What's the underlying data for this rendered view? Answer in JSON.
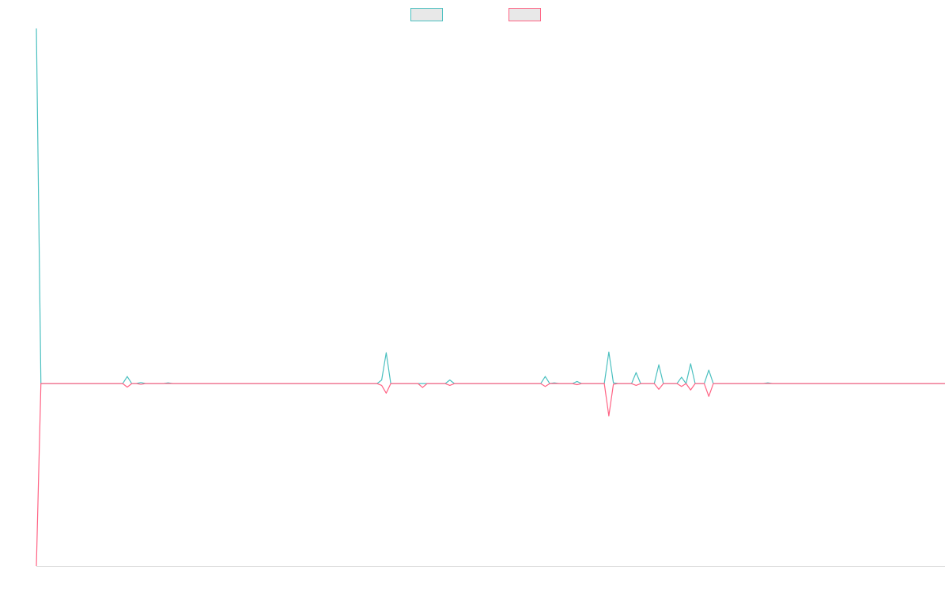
{
  "chart_data": {
    "type": "line",
    "categories": [
      null,
      null,
      null,
      null,
      null,
      null,
      null,
      null,
      null,
      null,
      null,
      null,
      null,
      null,
      null,
      null,
      null,
      null,
      null,
      null,
      null,
      null,
      null,
      null,
      null,
      null,
      null,
      null,
      null,
      null,
      null,
      null,
      null,
      null,
      null,
      null,
      null,
      null,
      null,
      null,
      null,
      null,
      null,
      null,
      null,
      null,
      null,
      null,
      null,
      null,
      null,
      null,
      null,
      null,
      null,
      null,
      null,
      null,
      null,
      null,
      null,
      null,
      null,
      null,
      null,
      null,
      null,
      null,
      null,
      null,
      null,
      null,
      null,
      null,
      null,
      null,
      null,
      null,
      null,
      null,
      null,
      null,
      null,
      null,
      null,
      null,
      null,
      null,
      null,
      null,
      null,
      null,
      null,
      null,
      null,
      null,
      null,
      null,
      null,
      null,
      null,
      null,
      null,
      null,
      null,
      null,
      null,
      null,
      null,
      null,
      null,
      null,
      null,
      null,
      null,
      null,
      null,
      null,
      null,
      null,
      null,
      null,
      null,
      null,
      null,
      null,
      null,
      null,
      null,
      null,
      null,
      null,
      null,
      null,
      null,
      null,
      null,
      null,
      null,
      null,
      null,
      null,
      null,
      null,
      null,
      null,
      null,
      null,
      null,
      null,
      null,
      null,
      null,
      null,
      null,
      null,
      null,
      null,
      null,
      null,
      null,
      null,
      null,
      null,
      null,
      null,
      null,
      null,
      null,
      null,
      null,
      null,
      null,
      null,
      null,
      null,
      null,
      null,
      null,
      null,
      null,
      null,
      null,
      null,
      null,
      null,
      null,
      null,
      null,
      null,
      null,
      null,
      null,
      null,
      null,
      null,
      null,
      null,
      null,
      null,
      null
    ],
    "series": [
      {
        "color": "#4bc0c0",
        "values": [
          100,
          0,
          0,
          0,
          0,
          0,
          0,
          0,
          0,
          0,
          0,
          0,
          0,
          0,
          0,
          0,
          0,
          0,
          0,
          0,
          2,
          0,
          0,
          0.3,
          0,
          0,
          0,
          0,
          0,
          0.2,
          0,
          0,
          0,
          0,
          0,
          0,
          0,
          0,
          0,
          0,
          0,
          0,
          0,
          0,
          0,
          0,
          0,
          0,
          0,
          0,
          0,
          0,
          0,
          0,
          0,
          0,
          0,
          0,
          0,
          0,
          0,
          0,
          0,
          0,
          0,
          0,
          0,
          0,
          0,
          0,
          0,
          0,
          0,
          0,
          0,
          0,
          1,
          8.7,
          0,
          0,
          0,
          0,
          0,
          0,
          0,
          0,
          0,
          0,
          0,
          0,
          0,
          1,
          0,
          0,
          0,
          0,
          0,
          0,
          0,
          0,
          0,
          0,
          0,
          0,
          0,
          0,
          0,
          0,
          0,
          0,
          0,
          0,
          2,
          0,
          0.2,
          0,
          0,
          0,
          0,
          0.6,
          0,
          0,
          0,
          0,
          0,
          0,
          8.9,
          0.2,
          0,
          0,
          0,
          0,
          3.1,
          0,
          0,
          0,
          0,
          5.3,
          0,
          0,
          0,
          0,
          1.8,
          0,
          5.6,
          0,
          0,
          0,
          3.8,
          0,
          0,
          0,
          0,
          0,
          0,
          0,
          0,
          0,
          0,
          0,
          0,
          0.2,
          0,
          0,
          0,
          0,
          0,
          0,
          0,
          0,
          0,
          0,
          0,
          0,
          0,
          0,
          0,
          0,
          0,
          0,
          0,
          0,
          0,
          0,
          0,
          0,
          0,
          0,
          0,
          0,
          0,
          0,
          0,
          0,
          0,
          0,
          0,
          0,
          0,
          0,
          0
        ]
      },
      {
        "color": "#ff6384",
        "values": [
          -51.4,
          0,
          0,
          0,
          0,
          0,
          0,
          0,
          0,
          0,
          0,
          0,
          0,
          0,
          0,
          0,
          0,
          0,
          0,
          0,
          -1,
          0,
          0,
          -0.2,
          0,
          0,
          0,
          0,
          0,
          0,
          0,
          0,
          0,
          0,
          0,
          0,
          0,
          0,
          0,
          0,
          0,
          0,
          0,
          0,
          0,
          0,
          0,
          0,
          0,
          0,
          0,
          0,
          0,
          0,
          0,
          0,
          0,
          0,
          0,
          0,
          0,
          0,
          0,
          0,
          0,
          0,
          0,
          0,
          0,
          0,
          0,
          0,
          0,
          0,
          0,
          0,
          -0.5,
          -2.7,
          0,
          0,
          0,
          0,
          0,
          0,
          0,
          -1.1,
          0,
          0,
          0,
          0,
          0,
          -0.5,
          0,
          0,
          0,
          0,
          0,
          0,
          0,
          0,
          0,
          0,
          0,
          0,
          0,
          0,
          0,
          0,
          0,
          0,
          0,
          0,
          -0.8,
          0,
          0,
          0,
          0,
          0,
          0,
          -0.3,
          0,
          0,
          0,
          0,
          0,
          0,
          -9.1,
          -0.2,
          0,
          0,
          0,
          0,
          -0.5,
          0,
          0,
          0,
          0,
          -1.6,
          0,
          0,
          0,
          0,
          -0.8,
          0,
          -1.8,
          0,
          0,
          0,
          -3.6,
          0,
          0,
          0,
          0,
          0,
          0,
          0,
          0,
          0,
          0,
          0,
          0,
          0,
          0,
          0,
          0,
          0,
          0,
          0,
          0,
          0,
          0,
          0,
          0,
          0,
          0,
          0,
          0,
          0,
          0,
          0,
          0,
          0,
          0,
          0,
          0,
          0,
          0,
          0,
          0,
          0,
          0,
          0,
          0,
          0,
          0,
          0,
          0,
          0,
          0,
          0,
          0
        ]
      }
    ],
    "ylim": [
      -51.4,
      100
    ]
  }
}
